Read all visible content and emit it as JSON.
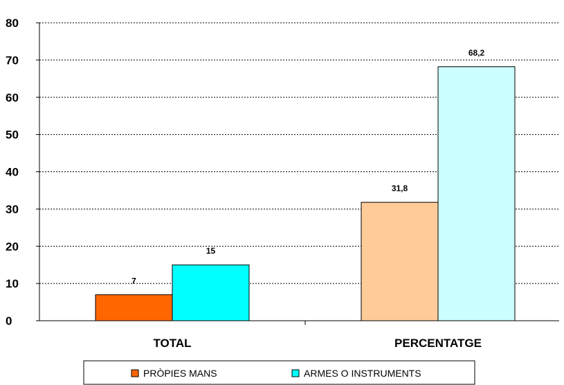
{
  "chart_data": {
    "type": "bar",
    "categories": [
      "TOTAL",
      "PERCENTATGE"
    ],
    "series": [
      {
        "name": "PRÒPIES MANS",
        "values": [
          7,
          31.8
        ],
        "value_labels": [
          "7",
          "31,8"
        ],
        "colors": [
          "#ff6600",
          "#ffcc99"
        ]
      },
      {
        "name": "ARMES O INSTRUMENTS",
        "values": [
          15,
          68.2
        ],
        "value_labels": [
          "15",
          "68,2"
        ],
        "colors": [
          "#00ffff",
          "#ccffff"
        ]
      }
    ],
    "yticks": [
      "0",
      "10",
      "20",
      "30",
      "40",
      "50",
      "60",
      "70",
      "80"
    ],
    "ylim": [
      0,
      80
    ],
    "grid": true,
    "legend_position": "bottom",
    "title": "",
    "xlabel": "",
    "ylabel": ""
  }
}
